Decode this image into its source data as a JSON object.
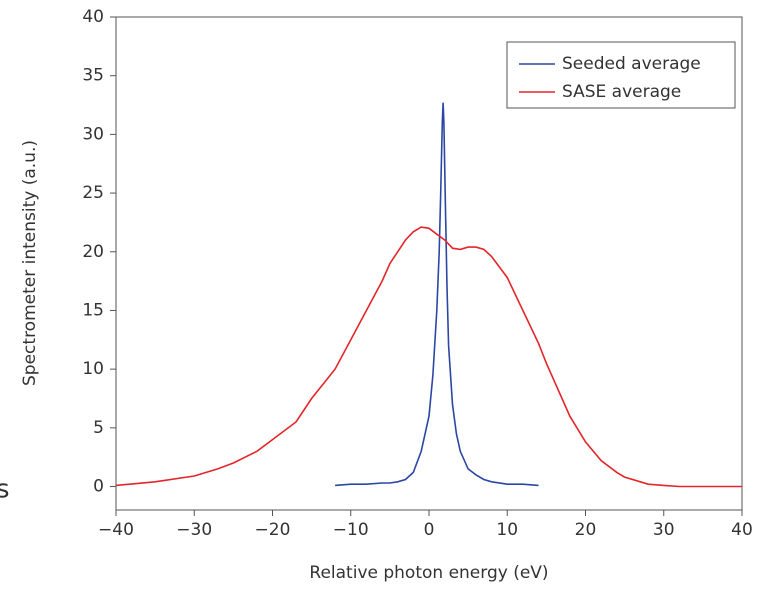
{
  "chart_data": {
    "type": "line",
    "x_label": "Relative photon energy (eV)",
    "y_label": "Spectrometer intensity (a.u.)",
    "stray_text": "s",
    "xlim": [
      -40,
      40
    ],
    "xticks": [
      {
        "value": -40,
        "label": "−40"
      },
      {
        "value": -30,
        "label": "−30"
      },
      {
        "value": -20,
        "label": "−20"
      },
      {
        "value": -10,
        "label": "−10"
      },
      0,
      10,
      20,
      30,
      40
    ],
    "ylim": [
      -2,
      40
    ],
    "yticks": [
      0,
      5,
      10,
      15,
      20,
      25,
      30,
      35,
      40
    ],
    "grid": false,
    "legend": "top-right",
    "series": [
      {
        "name": "Seeded average",
        "color": "#2b47a3",
        "x": [
          -12,
          -10,
          -8,
          -6,
          -5,
          -4,
          -3,
          -2,
          -1,
          0,
          0.5,
          1,
          1.3,
          1.5,
          1.7,
          1.8,
          1.9,
          2.1,
          2.3,
          2.5,
          3,
          3.5,
          4,
          5,
          6,
          7,
          8,
          10,
          12,
          14
        ],
        "values": [
          0.1,
          0.2,
          0.2,
          0.3,
          0.3,
          0.4,
          0.6,
          1.2,
          3,
          6,
          9.5,
          15,
          20,
          25,
          31,
          32.7,
          31,
          24,
          17,
          12,
          7,
          4.5,
          3,
          1.5,
          1,
          0.6,
          0.4,
          0.2,
          0.2,
          0.1
        ]
      },
      {
        "name": "SASE average",
        "color": "#e3262b",
        "x": [
          -40,
          -35,
          -30,
          -27,
          -25,
          -22,
          -20,
          -17,
          -15,
          -12,
          -10,
          -8,
          -6,
          -5,
          -4,
          -3,
          -2,
          -1,
          0,
          1,
          2,
          3,
          4,
          5,
          6,
          7,
          8,
          9,
          10,
          12,
          14,
          15,
          17,
          18,
          20,
          22,
          24,
          25,
          27,
          28,
          30,
          32,
          35,
          40
        ],
        "values": [
          0.1,
          0.4,
          0.9,
          1.5,
          2,
          3,
          4,
          5.5,
          7.5,
          10,
          12.5,
          15,
          17.5,
          19,
          20,
          21,
          21.7,
          22.1,
          22,
          21.5,
          21,
          20.3,
          20.2,
          20.4,
          20.4,
          20.2,
          19.6,
          18.7,
          17.8,
          15,
          12.2,
          10.5,
          7.5,
          6,
          3.8,
          2.2,
          1.2,
          0.8,
          0.4,
          0.2,
          0.1,
          0,
          0,
          0
        ]
      }
    ]
  }
}
